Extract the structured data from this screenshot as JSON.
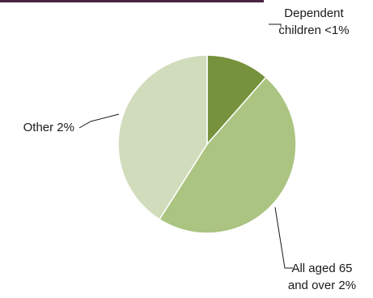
{
  "colors": {
    "top_rule": "#4a2442",
    "slice_dark": "#76923c",
    "slice_mid": "#abc481",
    "slice_light": "#d0dcbb",
    "slice_border": "#ffffff",
    "leader": "#1a1a1a"
  },
  "chart_data": {
    "type": "pie",
    "title": "",
    "slices": [
      {
        "label_lines": [
          "Dependent",
          "children <1%"
        ],
        "value": 11.5,
        "color": "#76923c"
      },
      {
        "label_lines": [
          "All aged 65",
          "and over 2%"
        ],
        "value": 47.5,
        "color": "#abc481"
      },
      {
        "label_lines": [
          "Other 2%"
        ],
        "value": 41.0,
        "color": "#d0dcbb"
      }
    ],
    "start_angle_deg": 0,
    "direction": "clockwise",
    "legend": "none",
    "labels": "outside-with-leaders"
  }
}
